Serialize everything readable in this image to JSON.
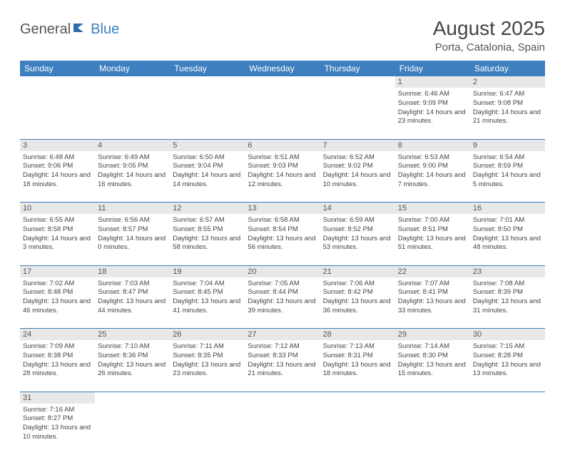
{
  "logo": {
    "part1": "General",
    "part2": "Blue"
  },
  "title": "August 2025",
  "location": "Porta, Catalonia, Spain",
  "colors": {
    "header_bg": "#3d7fbf",
    "header_text": "#ffffff",
    "daynum_bg": "#e8e8e8",
    "border": "#3d7fbf",
    "text": "#444444",
    "logo_gray": "#555555",
    "logo_blue": "#3d7fbf"
  },
  "weekdays": [
    "Sunday",
    "Monday",
    "Tuesday",
    "Wednesday",
    "Thursday",
    "Friday",
    "Saturday"
  ],
  "weeks": [
    [
      null,
      null,
      null,
      null,
      null,
      {
        "d": "1",
        "sr": "6:46 AM",
        "ss": "9:09 PM",
        "dl": "14 hours and 23 minutes."
      },
      {
        "d": "2",
        "sr": "6:47 AM",
        "ss": "9:08 PM",
        "dl": "14 hours and 21 minutes."
      }
    ],
    [
      {
        "d": "3",
        "sr": "6:48 AM",
        "ss": "9:06 PM",
        "dl": "14 hours and 18 minutes."
      },
      {
        "d": "4",
        "sr": "6:49 AM",
        "ss": "9:05 PM",
        "dl": "14 hours and 16 minutes."
      },
      {
        "d": "5",
        "sr": "6:50 AM",
        "ss": "9:04 PM",
        "dl": "14 hours and 14 minutes."
      },
      {
        "d": "6",
        "sr": "6:51 AM",
        "ss": "9:03 PM",
        "dl": "14 hours and 12 minutes."
      },
      {
        "d": "7",
        "sr": "6:52 AM",
        "ss": "9:02 PM",
        "dl": "14 hours and 10 minutes."
      },
      {
        "d": "8",
        "sr": "6:53 AM",
        "ss": "9:00 PM",
        "dl": "14 hours and 7 minutes."
      },
      {
        "d": "9",
        "sr": "6:54 AM",
        "ss": "8:59 PM",
        "dl": "14 hours and 5 minutes."
      }
    ],
    [
      {
        "d": "10",
        "sr": "6:55 AM",
        "ss": "8:58 PM",
        "dl": "14 hours and 3 minutes."
      },
      {
        "d": "11",
        "sr": "6:56 AM",
        "ss": "8:57 PM",
        "dl": "14 hours and 0 minutes."
      },
      {
        "d": "12",
        "sr": "6:57 AM",
        "ss": "8:55 PM",
        "dl": "13 hours and 58 minutes."
      },
      {
        "d": "13",
        "sr": "6:58 AM",
        "ss": "8:54 PM",
        "dl": "13 hours and 56 minutes."
      },
      {
        "d": "14",
        "sr": "6:59 AM",
        "ss": "8:52 PM",
        "dl": "13 hours and 53 minutes."
      },
      {
        "d": "15",
        "sr": "7:00 AM",
        "ss": "8:51 PM",
        "dl": "13 hours and 51 minutes."
      },
      {
        "d": "16",
        "sr": "7:01 AM",
        "ss": "8:50 PM",
        "dl": "13 hours and 48 minutes."
      }
    ],
    [
      {
        "d": "17",
        "sr": "7:02 AM",
        "ss": "8:48 PM",
        "dl": "13 hours and 46 minutes."
      },
      {
        "d": "18",
        "sr": "7:03 AM",
        "ss": "8:47 PM",
        "dl": "13 hours and 44 minutes."
      },
      {
        "d": "19",
        "sr": "7:04 AM",
        "ss": "8:45 PM",
        "dl": "13 hours and 41 minutes."
      },
      {
        "d": "20",
        "sr": "7:05 AM",
        "ss": "8:44 PM",
        "dl": "13 hours and 39 minutes."
      },
      {
        "d": "21",
        "sr": "7:06 AM",
        "ss": "8:42 PM",
        "dl": "13 hours and 36 minutes."
      },
      {
        "d": "22",
        "sr": "7:07 AM",
        "ss": "8:41 PM",
        "dl": "13 hours and 33 minutes."
      },
      {
        "d": "23",
        "sr": "7:08 AM",
        "ss": "8:39 PM",
        "dl": "13 hours and 31 minutes."
      }
    ],
    [
      {
        "d": "24",
        "sr": "7:09 AM",
        "ss": "8:38 PM",
        "dl": "13 hours and 28 minutes."
      },
      {
        "d": "25",
        "sr": "7:10 AM",
        "ss": "8:36 PM",
        "dl": "13 hours and 26 minutes."
      },
      {
        "d": "26",
        "sr": "7:11 AM",
        "ss": "8:35 PM",
        "dl": "13 hours and 23 minutes."
      },
      {
        "d": "27",
        "sr": "7:12 AM",
        "ss": "8:33 PM",
        "dl": "13 hours and 21 minutes."
      },
      {
        "d": "28",
        "sr": "7:13 AM",
        "ss": "8:31 PM",
        "dl": "13 hours and 18 minutes."
      },
      {
        "d": "29",
        "sr": "7:14 AM",
        "ss": "8:30 PM",
        "dl": "13 hours and 15 minutes."
      },
      {
        "d": "30",
        "sr": "7:15 AM",
        "ss": "8:28 PM",
        "dl": "13 hours and 13 minutes."
      }
    ],
    [
      {
        "d": "31",
        "sr": "7:16 AM",
        "ss": "8:27 PM",
        "dl": "13 hours and 10 minutes."
      },
      null,
      null,
      null,
      null,
      null,
      null
    ]
  ],
  "labels": {
    "sunrise": "Sunrise: ",
    "sunset": "Sunset: ",
    "daylight": "Daylight: "
  }
}
